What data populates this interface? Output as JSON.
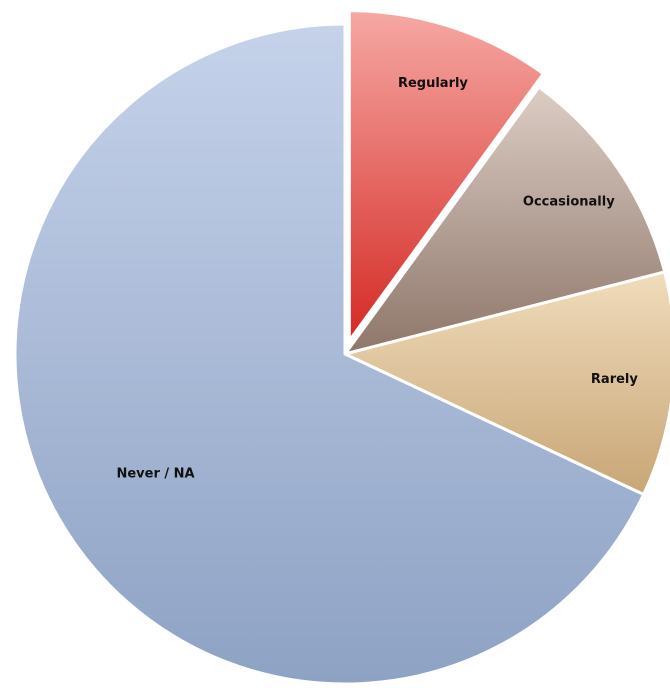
{
  "chart_data": {
    "type": "pie",
    "title": "",
    "slices": [
      {
        "label": "Regularly",
        "value": 10,
        "color_top": "#f6a8a4",
        "color_bottom": "#d42a24",
        "exploded": true
      },
      {
        "label": "Occasionally",
        "value": 11,
        "color_top": "#dccdc4",
        "color_bottom": "#8e766a",
        "exploded": false
      },
      {
        "label": "Rarely",
        "value": 11,
        "color_top": "#f0dcbc",
        "color_bottom": "#c8a676",
        "exploded": false
      },
      {
        "label": "Never / NA",
        "value": 68,
        "color_top": "#c5d2ea",
        "color_bottom": "#8ea2c4",
        "exploded": false
      }
    ],
    "legend": "none",
    "data_labels": "inside"
  }
}
